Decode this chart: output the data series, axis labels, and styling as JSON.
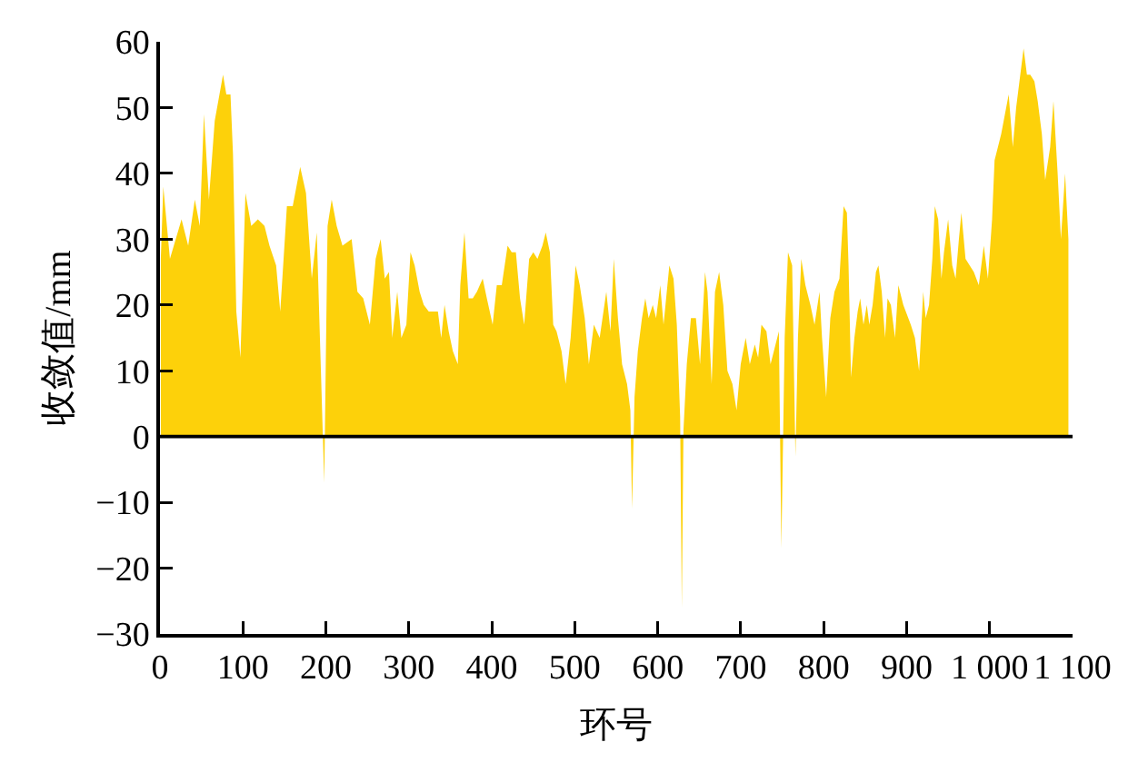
{
  "chart_data": {
    "type": "area",
    "xlabel": "环号",
    "ylabel": "收敛值/mm",
    "color": "#fdd10a",
    "x": [
      1,
      4,
      12,
      19,
      26,
      34,
      42,
      48,
      53,
      59,
      66,
      76,
      80,
      85,
      88,
      92,
      97,
      103,
      110,
      118,
      126,
      132,
      140,
      145,
      153,
      160,
      169,
      176,
      183,
      189,
      194,
      198,
      202,
      207,
      213,
      220,
      231,
      238,
      245,
      253,
      260,
      266,
      271,
      276,
      280,
      286,
      291,
      297,
      302,
      307,
      313,
      318,
      324,
      329,
      335,
      339,
      343,
      348,
      353,
      359,
      362,
      367,
      372,
      377,
      382,
      389,
      394,
      401,
      406,
      412,
      419,
      424,
      429,
      434,
      439,
      445,
      450,
      455,
      461,
      465,
      470,
      474,
      478,
      484,
      489,
      495,
      501,
      506,
      512,
      517,
      523,
      530,
      538,
      543,
      547,
      552,
      557,
      563,
      567,
      569,
      572,
      576,
      581,
      585,
      589,
      594,
      598,
      603,
      607,
      614,
      619,
      623,
      627,
      629,
      631,
      635,
      640,
      646,
      651,
      657,
      660,
      665,
      669,
      674,
      679,
      684,
      690,
      695,
      700,
      706,
      711,
      717,
      721,
      725,
      731,
      736,
      740,
      746,
      749,
      753,
      757,
      762,
      766,
      769,
      773,
      778,
      784,
      789,
      795,
      798,
      803,
      808,
      813,
      819,
      824,
      828,
      830,
      833,
      837,
      841,
      844,
      848,
      852,
      855,
      859,
      863,
      866,
      870,
      874,
      877,
      881,
      886,
      890,
      896,
      899,
      905,
      910,
      915,
      920,
      923,
      927,
      931,
      934,
      938,
      942,
      945,
      950,
      955,
      959,
      963,
      966,
      971,
      976,
      981,
      987,
      993,
      998,
      1003,
      1006,
      1010,
      1014,
      1020,
      1023,
      1028,
      1032,
      1036,
      1041,
      1045,
      1049,
      1054,
      1058,
      1063,
      1067,
      1073,
      1077,
      1082,
      1086,
      1091,
      1095
    ],
    "values": [
      27,
      38,
      27,
      30,
      33,
      29,
      36,
      32,
      49,
      36,
      48,
      55,
      52,
      52,
      43,
      19,
      12,
      37,
      32,
      33,
      32,
      29,
      26,
      19,
      35,
      35,
      41,
      37,
      24,
      31,
      10,
      -7,
      32,
      36,
      32,
      29,
      30,
      22,
      21,
      17,
      27,
      30,
      24,
      25,
      15,
      22,
      15,
      17,
      28,
      26,
      22,
      20,
      19,
      19,
      19,
      15,
      20,
      16,
      13,
      11,
      23,
      31,
      21,
      21,
      22,
      24,
      21,
      17,
      23,
      23,
      29,
      28,
      28,
      21,
      17,
      27,
      28,
      27,
      29,
      31,
      28,
      17,
      16,
      13,
      8,
      15,
      26,
      23,
      18,
      11,
      17,
      15,
      22,
      16,
      27,
      18,
      11,
      8,
      4,
      -11,
      6,
      13,
      18,
      21,
      18,
      20,
      18,
      23,
      17,
      26,
      24,
      17,
      3,
      -26,
      1,
      11,
      18,
      18,
      11,
      25,
      22,
      8,
      22,
      25,
      20,
      10,
      8,
      4,
      11,
      15,
      11,
      14,
      12,
      17,
      16,
      11,
      13,
      16,
      -17,
      15,
      28,
      26,
      -3,
      15,
      27,
      23,
      20,
      17,
      22,
      15,
      6,
      18,
      22,
      24,
      35,
      34,
      26,
      9,
      15,
      19,
      21,
      17,
      20,
      17,
      20,
      25,
      26,
      22,
      15,
      21,
      20,
      15,
      23,
      20,
      19,
      17,
      15,
      10,
      22,
      18,
      20,
      27,
      35,
      33,
      24,
      28,
      33,
      26,
      24,
      30,
      34,
      27,
      26,
      25,
      23,
      29,
      24,
      33,
      42,
      44,
      46,
      50,
      52,
      44,
      50,
      54,
      59,
      55,
      55,
      54,
      51,
      46,
      39,
      44,
      51,
      40,
      30,
      40,
      30
    ],
    "xlim": [
      0,
      1100
    ],
    "xticks": [
      0,
      100,
      200,
      300,
      400,
      500,
      600,
      700,
      800,
      900,
      {
        "value": 1000,
        "label": "1 000"
      },
      {
        "value": 1100,
        "label": "1 100"
      }
    ],
    "ylim": [
      -30,
      60
    ],
    "yticks": [
      {
        "value": -30,
        "label": "−30"
      },
      {
        "value": -20,
        "label": "−20"
      },
      {
        "value": -10,
        "label": "−10"
      },
      0,
      10,
      20,
      30,
      40,
      50,
      60
    ],
    "ref_lines": [
      {
        "axis": "y",
        "value": 0,
        "color": "#000000"
      }
    ]
  }
}
